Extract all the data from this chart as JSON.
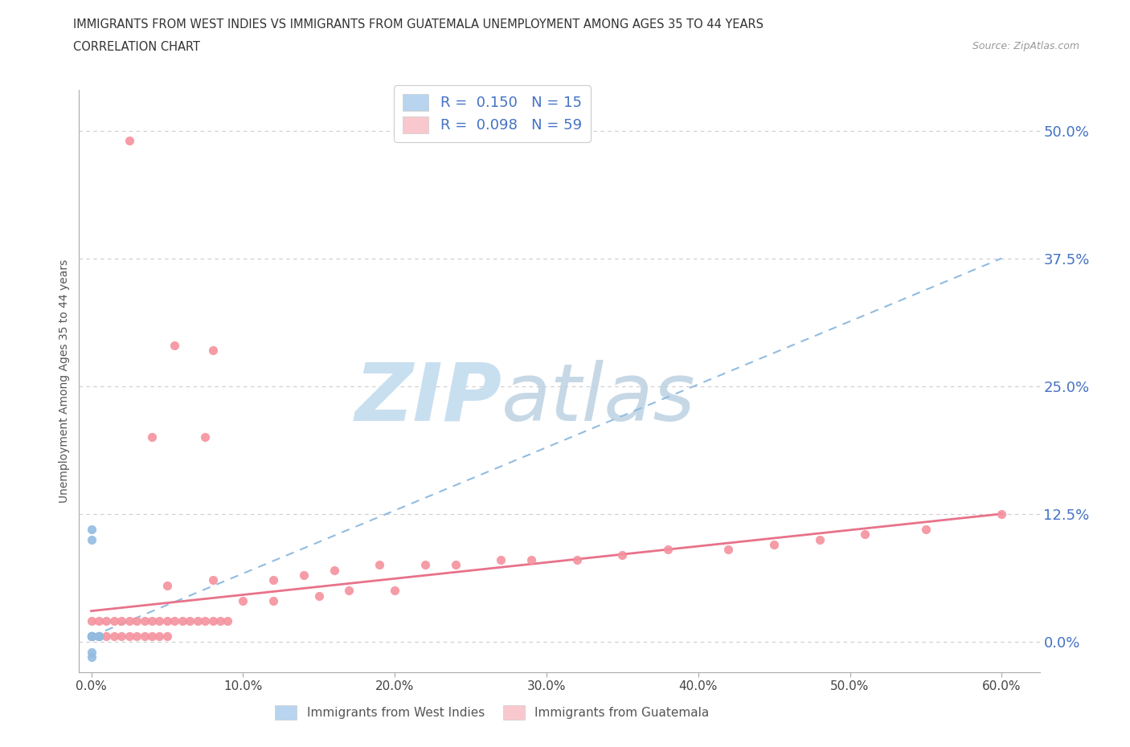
{
  "title_line1": "IMMIGRANTS FROM WEST INDIES VS IMMIGRANTS FROM GUATEMALA UNEMPLOYMENT AMONG AGES 35 TO 44 YEARS",
  "title_line2": "CORRELATION CHART",
  "source_text": "Source: ZipAtlas.com",
  "ylabel": "Unemployment Among Ages 35 to 44 years",
  "x_tick_labels": [
    "0.0%",
    "10.0%",
    "20.0%",
    "30.0%",
    "40.0%",
    "50.0%",
    "60.0%"
  ],
  "x_tick_values": [
    0.0,
    0.1,
    0.2,
    0.3,
    0.4,
    0.5,
    0.6
  ],
  "y_tick_labels": [
    "0.0%",
    "12.5%",
    "25.0%",
    "37.5%",
    "50.0%"
  ],
  "y_tick_values": [
    0.0,
    0.125,
    0.25,
    0.375,
    0.5
  ],
  "legend_top_labels": [
    "R =  0.150   N = 15",
    "R =  0.098   N = 59"
  ],
  "legend_bottom_labels": [
    "Immigrants from West Indies",
    "Immigrants from Guatemala"
  ],
  "west_indies_color": "#92bce0",
  "guatemala_color": "#f4919e",
  "trend_wi_color": "#92bce0",
  "trend_gt_color": "#e8728a",
  "wi_patch_color": "#b8d4ee",
  "gt_patch_color": "#f9c8cf",
  "watermark_zip_color": "#c8dff0",
  "watermark_atlas_color": "#b8cfe0",
  "wi_scatter_x": [
    0.0,
    0.0,
    0.005,
    0.005,
    0.005,
    0.0,
    0.0,
    0.0,
    0.005,
    0.0,
    0.0,
    0.0,
    0.0,
    0.0,
    0.0
  ],
  "wi_scatter_y": [
    0.005,
    0.005,
    0.005,
    0.005,
    0.005,
    0.1,
    0.11,
    0.005,
    0.005,
    0.005,
    0.005,
    0.005,
    0.005,
    -0.01,
    -0.015
  ],
  "gt_scatter_x": [
    0.025,
    0.055,
    0.08,
    0.04,
    0.075,
    0.0,
    0.005,
    0.01,
    0.015,
    0.02,
    0.025,
    0.03,
    0.035,
    0.04,
    0.045,
    0.05,
    0.0,
    0.005,
    0.01,
    0.015,
    0.02,
    0.025,
    0.03,
    0.035,
    0.04,
    0.045,
    0.05,
    0.055,
    0.06,
    0.065,
    0.07,
    0.075,
    0.08,
    0.085,
    0.09,
    0.05,
    0.08,
    0.12,
    0.14,
    0.16,
    0.19,
    0.22,
    0.24,
    0.27,
    0.29,
    0.32,
    0.35,
    0.38,
    0.42,
    0.45,
    0.48,
    0.51,
    0.55,
    0.1,
    0.12,
    0.15,
    0.17,
    0.2,
    0.6
  ],
  "gt_scatter_y": [
    0.49,
    0.29,
    0.285,
    0.2,
    0.2,
    0.005,
    0.005,
    0.005,
    0.005,
    0.005,
    0.005,
    0.005,
    0.005,
    0.005,
    0.005,
    0.005,
    0.02,
    0.02,
    0.02,
    0.02,
    0.02,
    0.02,
    0.02,
    0.02,
    0.02,
    0.02,
    0.02,
    0.02,
    0.02,
    0.02,
    0.02,
    0.02,
    0.02,
    0.02,
    0.02,
    0.055,
    0.06,
    0.06,
    0.065,
    0.07,
    0.075,
    0.075,
    0.075,
    0.08,
    0.08,
    0.08,
    0.085,
    0.09,
    0.09,
    0.095,
    0.1,
    0.105,
    0.11,
    0.04,
    0.04,
    0.045,
    0.05,
    0.05,
    0.125
  ],
  "wi_trend_x": [
    0.0,
    0.6
  ],
  "wi_trend_y": [
    0.005,
    0.375
  ],
  "gt_trend_x": [
    0.0,
    0.6
  ],
  "gt_trend_y": [
    0.03,
    0.125
  ]
}
